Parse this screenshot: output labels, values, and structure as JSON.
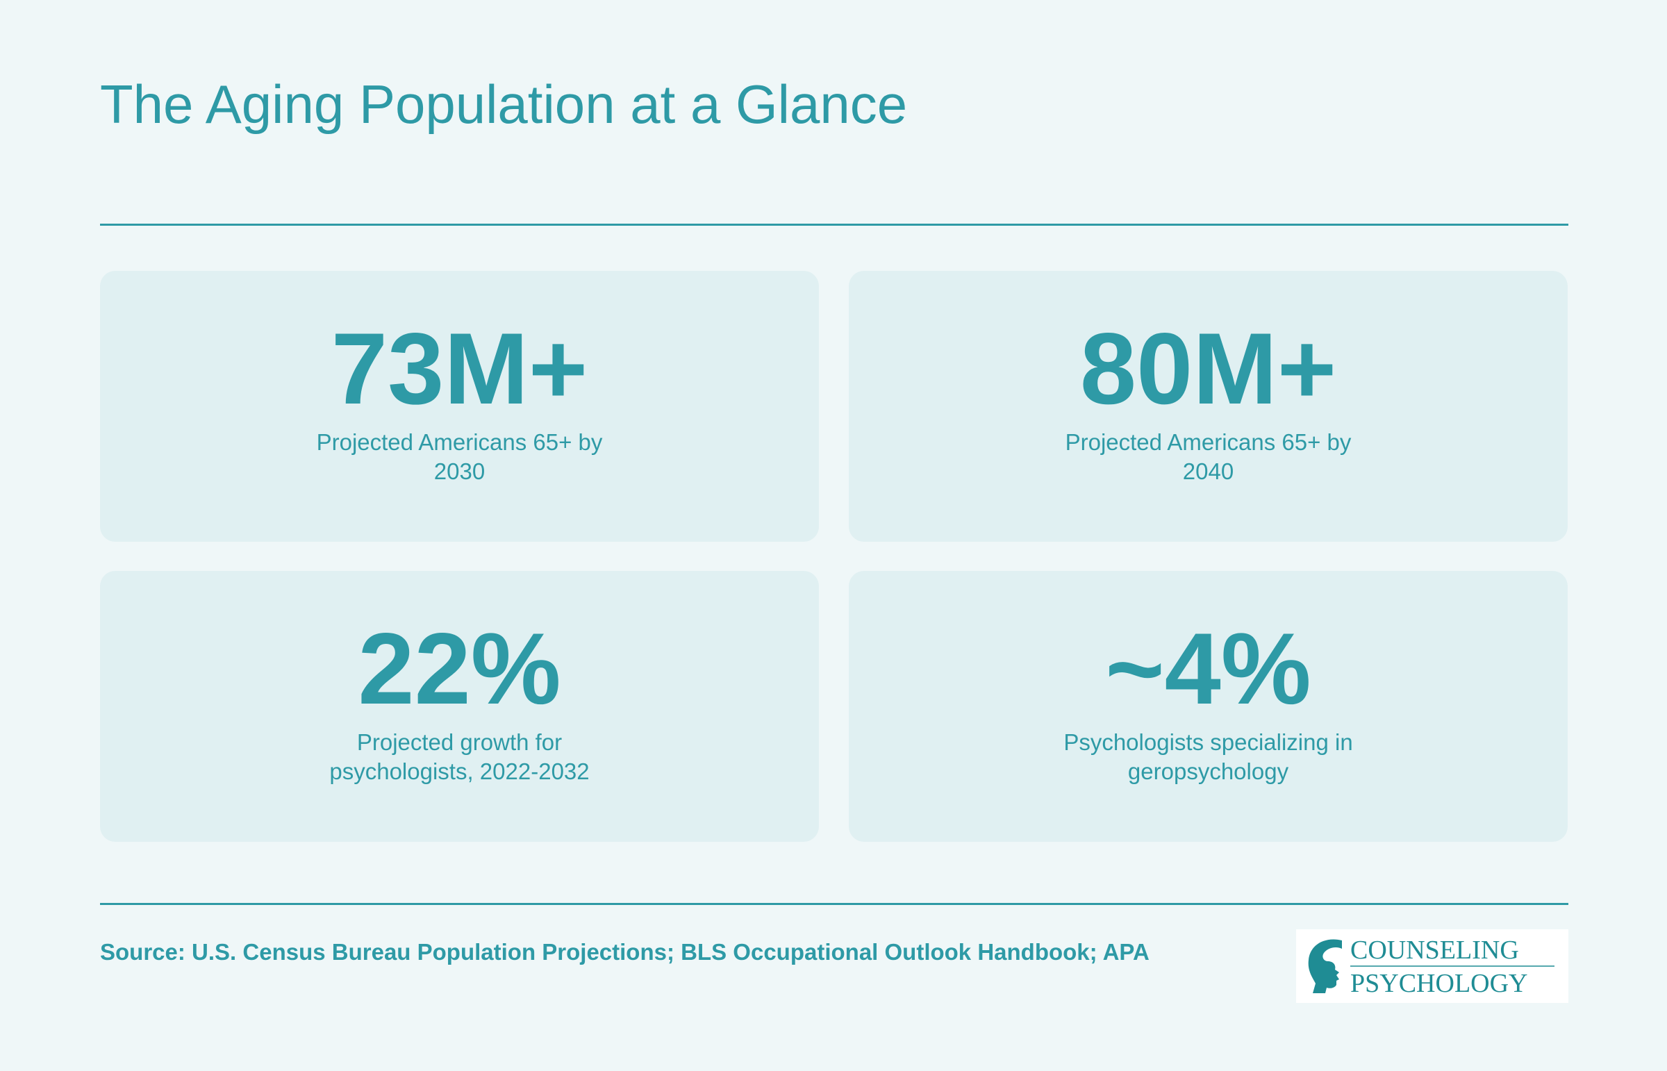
{
  "page": {
    "title": "The Aging Population at a Glance"
  },
  "stats": [
    {
      "value": "73M+",
      "label": "Projected Americans 65+ by 2030"
    },
    {
      "value": "80M+",
      "label": "Projected Americans 65+ by 2040"
    },
    {
      "value": "22%",
      "label": "Projected growth for psychologists, 2022-2032"
    },
    {
      "value": "~4%",
      "label": "Psychologists specializing in geropsychology"
    }
  ],
  "footer": {
    "source": "Source: U.S. Census Bureau Population Projections; BLS Occupational Outlook Handbook; APA"
  },
  "logo": {
    "icon": "head-profile-icon",
    "line1": "COUNSELING",
    "line2": "PSYCHOLOGY"
  },
  "colors": {
    "background": "#eff7f8",
    "card": "#e0f0f2",
    "accent": "#2e9aa6",
    "logo_text": "#1f8c94"
  }
}
